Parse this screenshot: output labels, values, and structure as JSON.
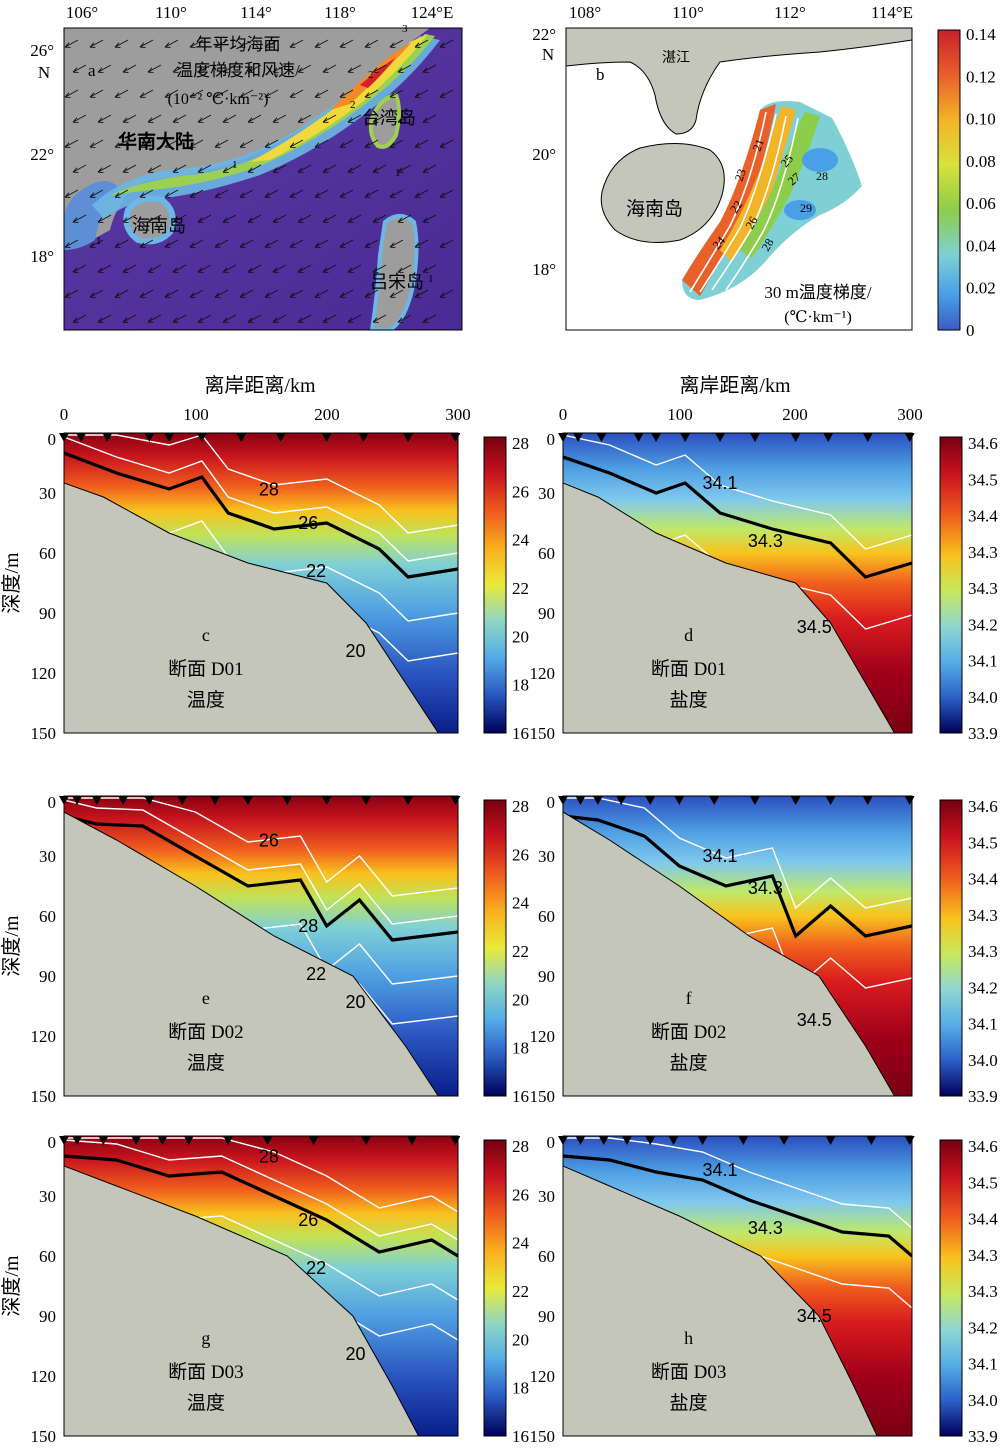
{
  "colors": {
    "land": "#c3c6b9",
    "mapLand": "#9d9d9d",
    "tempScale": [
      "#00005a",
      "#0a2aa0",
      "#2c6fd0",
      "#55aee6",
      "#8fd6d2",
      "#c8e85c",
      "#f7e534",
      "#f9a21e",
      "#e9451c",
      "#b3001c",
      "#770010"
    ],
    "gradScale": [
      "#3b5cc4",
      "#4aa0e6",
      "#7fd0d4",
      "#8ccd4a",
      "#d8e23a",
      "#f2b428",
      "#e8602a",
      "#c8202a"
    ],
    "isoline": "#ffffff",
    "thermocline": "#000000"
  },
  "mapA": {
    "label": "a",
    "title_lines": [
      "年平均海面",
      "温度梯度和风速/",
      "(10⁻² ℃·km⁻²)"
    ],
    "lon_ticks": [
      "106°",
      "110°",
      "114°",
      "118°",
      "124°E"
    ],
    "lat_ticks": [
      "26°",
      "N",
      "22°",
      "18°"
    ],
    "places": [
      "华南大陆",
      "海南岛",
      "台湾岛",
      "吕宋岛"
    ],
    "contour_labels": [
      "3",
      "2",
      "2",
      "1",
      "1",
      "1",
      "1"
    ]
  },
  "mapB": {
    "label": "b",
    "lon_ticks": [
      "108°",
      "110°",
      "112°",
      "114°E"
    ],
    "lat_ticks": [
      "22°",
      "N",
      "20°",
      "18°"
    ],
    "places": [
      "湛江",
      "海南岛"
    ],
    "contour_labels": [
      "21",
      "23",
      "25",
      "27",
      "28",
      "22",
      "29",
      "24",
      "26",
      "28"
    ],
    "caption_lines": [
      "30 m温度梯度/",
      "(℃·km⁻¹)"
    ],
    "colorbar_ticks": [
      "0.14",
      "0.12",
      "0.10",
      "0.08",
      "0.06",
      "0.04",
      "0.02",
      "0"
    ]
  },
  "sections": {
    "distance_axis_title": "离岸距离/km",
    "depth_axis_title": "深度/m",
    "x_ticks": [
      "0",
      "100",
      "200",
      "300"
    ],
    "y_ticks": [
      "0",
      "30",
      "60",
      "90",
      "120",
      "150"
    ],
    "temp_colorbar_ticks": [
      "28",
      "26",
      "24",
      "22",
      "20",
      "18",
      "16"
    ],
    "salt_colorbar_ticks": [
      "34.6",
      "34.5",
      "34.4",
      "34.3",
      "34.3",
      "34.2",
      "34.1",
      "34.0",
      "33.9"
    ],
    "panels": [
      {
        "letter": "c",
        "section": "断面 D01",
        "variable": "温度",
        "isolabels": [
          "28",
          "26",
          "22",
          "20"
        ]
      },
      {
        "letter": "d",
        "section": "断面 D01",
        "variable": "盐度",
        "isolabels": [
          "34.1",
          "34.3",
          "34.5"
        ]
      },
      {
        "letter": "e",
        "section": "断面 D02",
        "variable": "温度",
        "isolabels": [
          "26",
          "28",
          "22",
          "20"
        ]
      },
      {
        "letter": "f",
        "section": "断面 D02",
        "variable": "盐度",
        "isolabels": [
          "34.1",
          "34.3",
          "34.5"
        ]
      },
      {
        "letter": "g",
        "section": "断面 D03",
        "variable": "温度",
        "isolabels": [
          "28",
          "26",
          "22",
          "20"
        ]
      },
      {
        "letter": "h",
        "section": "断面 D03",
        "variable": "盐度",
        "isolabels": [
          "34.1",
          "34.3",
          "34.5"
        ]
      }
    ]
  },
  "chart_data": [
    {
      "type": "heatmap",
      "panel": "a",
      "title": "年平均海面温度梯度和风速/(10⁻² ℃·km⁻²)",
      "xlim_lon": [
        105,
        125
      ],
      "ylim_lat": [
        15,
        27
      ],
      "contour_levels": [
        1,
        2,
        3
      ]
    },
    {
      "type": "heatmap",
      "panel": "b",
      "title": "30 m温度梯度/(℃·km⁻¹)",
      "colorbar_range": [
        0,
        0.14
      ],
      "contour_levels": [
        21,
        22,
        23,
        24,
        25,
        26,
        27,
        28,
        29
      ]
    },
    {
      "type": "heatmap",
      "panel": "c",
      "section": "D01",
      "variable": "温度",
      "xlim": [
        0,
        300
      ],
      "ylim": [
        0,
        150
      ],
      "colorbar_range": [
        16,
        28
      ],
      "contour_levels": [
        20,
        22,
        26,
        28
      ],
      "stations_km": [
        0,
        13,
        33,
        65,
        80,
        105,
        135,
        165,
        200,
        228,
        262,
        298
      ],
      "thermocline_26": [
        [
          0,
          10
        ],
        [
          40,
          20
        ],
        [
          80,
          28
        ],
        [
          105,
          22
        ],
        [
          125,
          40
        ],
        [
          160,
          48
        ],
        [
          200,
          45
        ],
        [
          240,
          58
        ],
        [
          262,
          72
        ],
        [
          300,
          68
        ]
      ],
      "seabed": [
        [
          0,
          25
        ],
        [
          30,
          32
        ],
        [
          80,
          50
        ],
        [
          140,
          65
        ],
        [
          200,
          75
        ],
        [
          230,
          95
        ],
        [
          260,
          125
        ],
        [
          285,
          150
        ]
      ]
    },
    {
      "type": "heatmap",
      "panel": "d",
      "section": "D01",
      "variable": "盐度",
      "xlim": [
        0,
        300
      ],
      "ylim": [
        0,
        150
      ],
      "colorbar_range": [
        33.9,
        34.6
      ],
      "contour_levels": [
        34.1,
        34.3,
        34.5
      ],
      "stations_km": [
        0,
        13,
        33,
        65,
        80,
        105,
        135,
        165,
        200,
        228,
        262,
        298
      ],
      "halocline_34_3": [
        [
          0,
          12
        ],
        [
          40,
          20
        ],
        [
          80,
          30
        ],
        [
          105,
          25
        ],
        [
          135,
          40
        ],
        [
          180,
          48
        ],
        [
          230,
          55
        ],
        [
          260,
          72
        ],
        [
          300,
          65
        ]
      ],
      "seabed": [
        [
          0,
          25
        ],
        [
          30,
          32
        ],
        [
          80,
          50
        ],
        [
          140,
          65
        ],
        [
          200,
          75
        ],
        [
          230,
          95
        ],
        [
          260,
          125
        ],
        [
          285,
          150
        ]
      ]
    },
    {
      "type": "heatmap",
      "panel": "e",
      "section": "D02",
      "variable": "温度",
      "xlim": [
        0,
        300
      ],
      "ylim": [
        0,
        150
      ],
      "colorbar_range": [
        16,
        28
      ],
      "contour_levels": [
        20,
        22,
        26,
        28
      ],
      "stations_km": [
        0,
        10,
        25,
        45,
        65,
        90,
        115,
        140,
        170,
        200,
        230,
        262,
        298
      ],
      "thermocline_26": [
        [
          0,
          10
        ],
        [
          25,
          14
        ],
        [
          60,
          15
        ],
        [
          100,
          30
        ],
        [
          140,
          45
        ],
        [
          180,
          42
        ],
        [
          200,
          65
        ],
        [
          225,
          52
        ],
        [
          250,
          72
        ],
        [
          300,
          68
        ]
      ],
      "seabed": [
        [
          0,
          8
        ],
        [
          40,
          22
        ],
        [
          100,
          45
        ],
        [
          160,
          70
        ],
        [
          220,
          90
        ],
        [
          260,
          125
        ],
        [
          285,
          150
        ]
      ]
    },
    {
      "type": "heatmap",
      "panel": "f",
      "section": "D02",
      "variable": "盐度",
      "xlim": [
        0,
        300
      ],
      "ylim": [
        0,
        150
      ],
      "colorbar_range": [
        33.9,
        34.6
      ],
      "contour_levels": [
        34.1,
        34.3,
        34.5
      ],
      "stations_km": [
        0,
        15,
        30,
        50,
        75,
        100,
        130,
        165,
        200,
        230,
        262,
        298
      ],
      "halocline_34_3": [
        [
          0,
          10
        ],
        [
          30,
          12
        ],
        [
          70,
          20
        ],
        [
          100,
          35
        ],
        [
          140,
          45
        ],
        [
          180,
          40
        ],
        [
          200,
          70
        ],
        [
          230,
          55
        ],
        [
          260,
          70
        ],
        [
          300,
          65
        ]
      ],
      "seabed": [
        [
          0,
          8
        ],
        [
          40,
          22
        ],
        [
          100,
          45
        ],
        [
          160,
          70
        ],
        [
          220,
          90
        ],
        [
          260,
          125
        ],
        [
          285,
          150
        ]
      ]
    },
    {
      "type": "heatmap",
      "panel": "g",
      "section": "D03",
      "variable": "温度",
      "xlim": [
        0,
        300
      ],
      "ylim": [
        0,
        150
      ],
      "colorbar_range": [
        16,
        28
      ],
      "contour_levels": [
        20,
        22,
        26,
        28
      ],
      "stations_km": [
        0,
        10,
        30,
        55,
        75,
        95,
        125,
        155,
        190,
        230,
        265,
        298
      ],
      "thermocline_26": [
        [
          0,
          10
        ],
        [
          40,
          12
        ],
        [
          80,
          20
        ],
        [
          120,
          18
        ],
        [
          160,
          30
        ],
        [
          200,
          42
        ],
        [
          240,
          58
        ],
        [
          280,
          52
        ],
        [
          300,
          60
        ]
      ],
      "seabed": [
        [
          0,
          15
        ],
        [
          40,
          25
        ],
        [
          100,
          40
        ],
        [
          170,
          60
        ],
        [
          220,
          90
        ],
        [
          250,
          125
        ],
        [
          270,
          150
        ]
      ]
    },
    {
      "type": "heatmap",
      "panel": "h",
      "section": "D03",
      "variable": "盐度",
      "xlim": [
        0,
        300
      ],
      "ylim": [
        0,
        150
      ],
      "colorbar_range": [
        33.9,
        34.6
      ],
      "contour_levels": [
        34.1,
        34.3,
        34.5
      ],
      "stations_km": [
        0,
        15,
        35,
        55,
        75,
        95,
        120,
        155,
        190,
        230,
        265,
        298
      ],
      "halocline_34_3": [
        [
          0,
          10
        ],
        [
          40,
          12
        ],
        [
          80,
          18
        ],
        [
          120,
          22
        ],
        [
          160,
          32
        ],
        [
          200,
          40
        ],
        [
          240,
          48
        ],
        [
          280,
          50
        ],
        [
          300,
          60
        ]
      ],
      "seabed": [
        [
          0,
          15
        ],
        [
          40,
          25
        ],
        [
          100,
          40
        ],
        [
          170,
          60
        ],
        [
          220,
          90
        ],
        [
          250,
          125
        ],
        [
          270,
          150
        ]
      ]
    }
  ]
}
